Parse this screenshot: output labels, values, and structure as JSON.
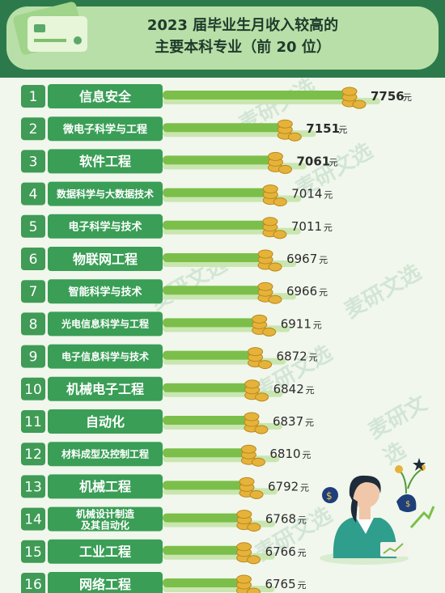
{
  "header": {
    "title_line1": "2023 届毕业生月收入较高的",
    "title_line2": "主要本科专业（前 20 位）"
  },
  "watermark": "麦研文选",
  "colors": {
    "banner": "#2c7a4b",
    "label_box": "#3a9e56",
    "rank_box": "#3f9b55",
    "bar": "#7bbf4a",
    "bar_light": "#c9e6b0",
    "coin": "#e6b33a"
  },
  "chart_data": {
    "type": "bar",
    "title": "2023 届毕业生月收入较高的 主要本科专业（前 20 位）",
    "unit": "元",
    "ranks": [
      "1",
      "2",
      "3",
      "4",
      "5",
      "6",
      "7",
      "8",
      "9",
      "10",
      "11",
      "12",
      "13",
      "14",
      "15",
      "16"
    ],
    "categories": [
      "信息安全",
      "微电子科学与工程",
      "软件工程",
      "数据科学与大数据技术",
      "电子科学与技术",
      "物联网工程",
      "智能科学与技术",
      "光电信息科学与工程",
      "电子信息科学与技术",
      "机械电子工程",
      "自动化",
      "材料成型及控制工程",
      "机械工程",
      "机械设计制造及其自动化",
      "工业工程",
      "网络工程"
    ],
    "values": [
      7756,
      7151,
      7061,
      7014,
      7011,
      6967,
      6966,
      6911,
      6872,
      6842,
      6837,
      6810,
      6792,
      6768,
      6766,
      6765
    ],
    "value_labels": [
      "7756",
      "7151",
      "7061",
      "7014",
      "7011",
      "6967",
      "6966",
      "6911",
      "6872",
      "6842",
      "6837",
      "6810",
      "6792",
      "6768",
      "6766",
      "6765"
    ]
  }
}
